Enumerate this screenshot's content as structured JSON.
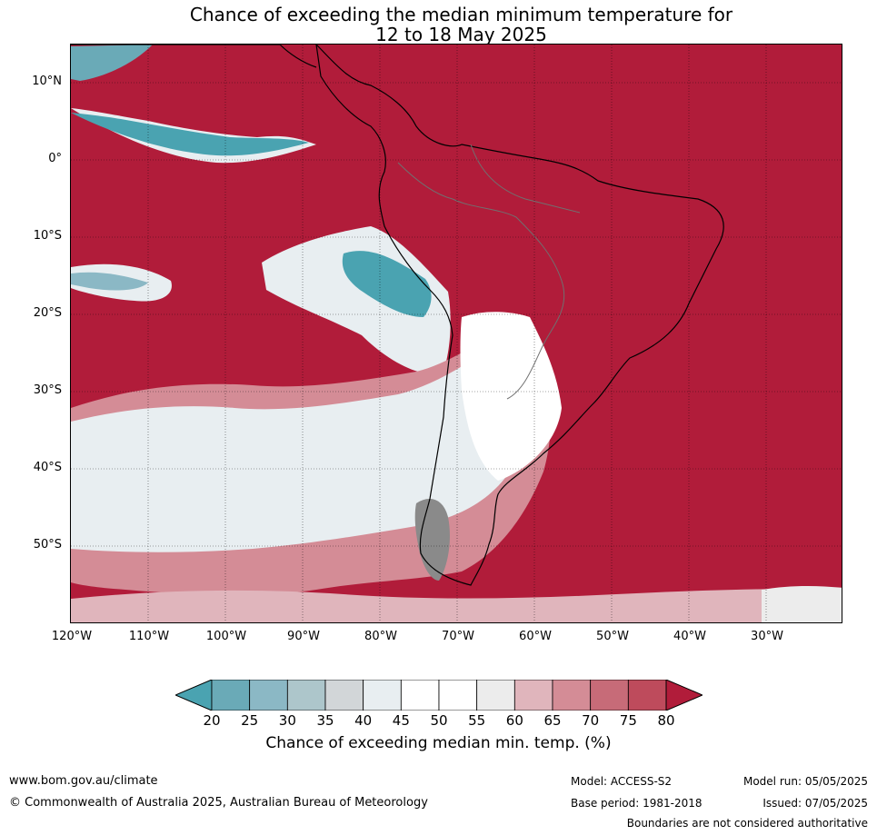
{
  "title": {
    "line1": "Chance of exceeding the median minimum temperature for",
    "line2": "12 to 18 May 2025"
  },
  "map": {
    "lat_labels": [
      "10°N",
      "0°",
      "10°S",
      "20°S",
      "30°S",
      "40°S",
      "50°S"
    ],
    "lon_labels": [
      "120°W",
      "110°W",
      "100°W",
      "90°W",
      "80°W",
      "70°W",
      "60°W",
      "50°W",
      "40°W",
      "30°W"
    ],
    "lat_range": [
      "15°N",
      "60°S"
    ],
    "lon_range": [
      "120°W",
      "20°W"
    ],
    "dominant_color": "#b11c3a"
  },
  "colorbar": {
    "ticks": [
      "20",
      "25",
      "30",
      "35",
      "40",
      "45",
      "50",
      "55",
      "60",
      "65",
      "70",
      "75",
      "80"
    ],
    "colors": [
      "#4aa3b1",
      "#6aaab7",
      "#8bb8c5",
      "#adc6cb",
      "#d2d6d8",
      "#e8eef1",
      "#ffffff",
      "#ffffff",
      "#ececec",
      "#e0b5bc",
      "#d48c96",
      "#c76b78",
      "#be4b5c",
      "#b11c3a"
    ],
    "title": "Chance of exceeding median min. temp. (%)"
  },
  "footer": {
    "website": "www.bom.gov.au/climate",
    "copyright": "© Commonwealth of Australia 2025, Australian Bureau of Meteorology",
    "model": "Model: ACCESS-S2",
    "base_period": "Base period: 1981-2018",
    "model_run": "Model run: 05/05/2025",
    "issued": "Issued: 07/05/2025",
    "disclaimer": "Boundaries are not considered authoritative"
  }
}
